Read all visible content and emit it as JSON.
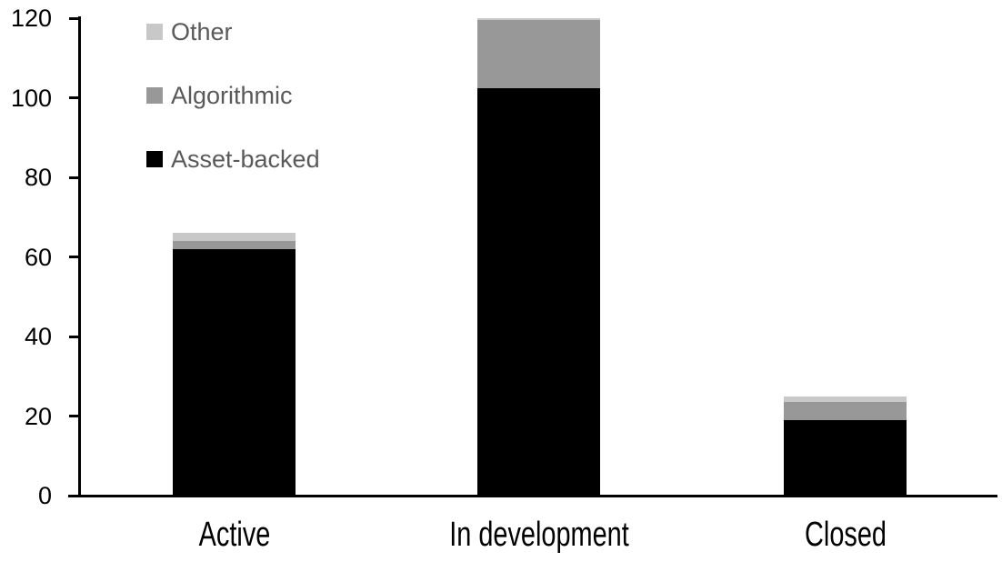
{
  "chart_data": {
    "type": "bar",
    "stacked": true,
    "title": "",
    "xlabel": "",
    "ylabel": "",
    "background": "#ffffff",
    "axis_color": "#000000",
    "grid": false,
    "ylim": [
      0,
      120
    ],
    "ytick_step": 20,
    "yticks": [
      0,
      20,
      40,
      60,
      80,
      100,
      120
    ],
    "categories": [
      "Active",
      "In development",
      "Closed"
    ],
    "series": [
      {
        "name": "Asset-backed",
        "color": "#000000",
        "values": [
          62,
          102.5,
          19
        ]
      },
      {
        "name": "Algorithmic",
        "color": "#989898",
        "values": [
          2,
          17,
          4.5
        ]
      },
      {
        "name": "Other",
        "color": "#c8c8c8",
        "values": [
          2,
          0.5,
          1.5
        ]
      }
    ],
    "totals": [
      66,
      120,
      25
    ],
    "legend": {
      "position": "top-left",
      "order": [
        "Other",
        "Algorithmic",
        "Asset-backed"
      ],
      "text_color": "#595959"
    }
  }
}
